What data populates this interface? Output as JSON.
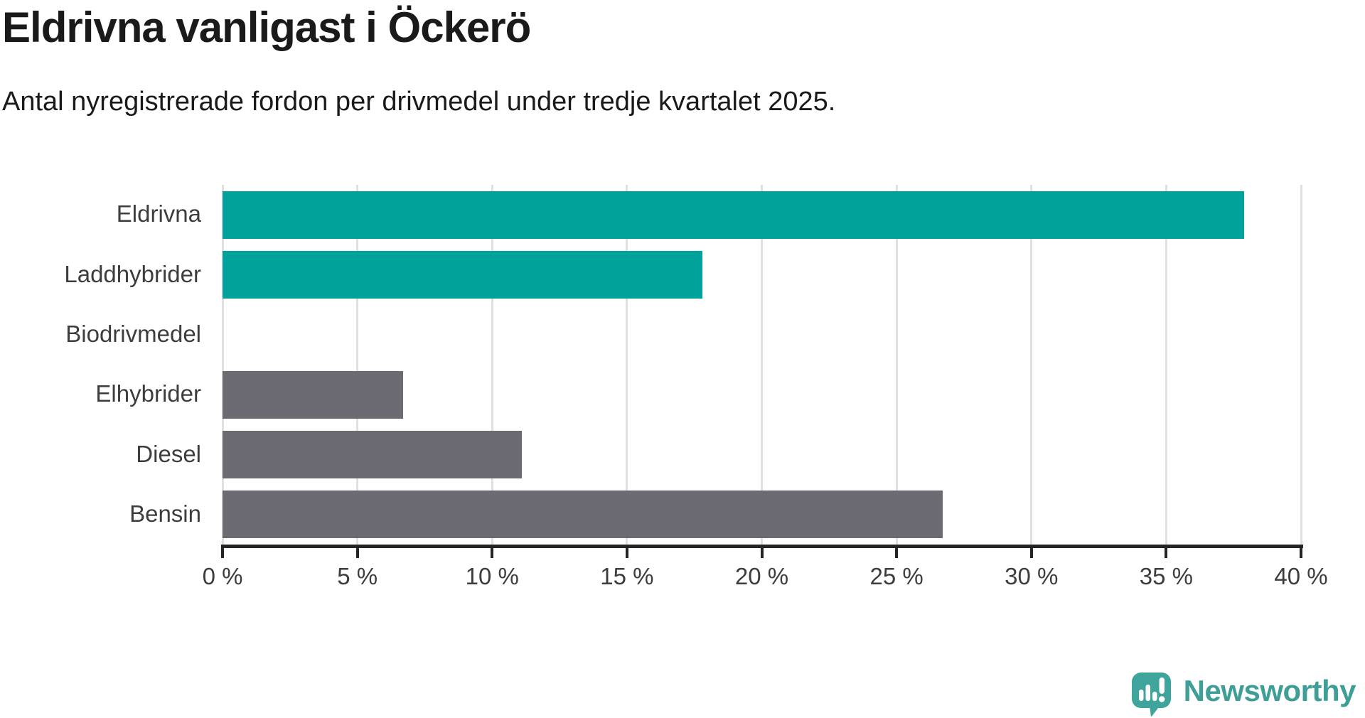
{
  "title": "Eldrivna vanligast i Öckerö",
  "subtitle": "Antal nyregistrerade fordon per drivmedel under tredje kvartalet 2025.",
  "colors": {
    "accent_teal": "#00a29b",
    "neutral_gray": "#6c6a72",
    "gridline": "#e0e0e0",
    "axis": "#252525",
    "heading_text": "#1a1a1a",
    "label_text": "#3d3d3d",
    "logo_teal": "#3f9f97"
  },
  "chart_data": {
    "type": "bar",
    "orientation": "horizontal",
    "title": "Eldrivna vanligast i Öckerö",
    "subtitle": "Antal nyregistrerade fordon per drivmedel under tredje kvartalet 2025.",
    "categories": [
      "Eldrivna",
      "Laddhybrider",
      "Biodrivmedel",
      "Elhybrider",
      "Diesel",
      "Bensin"
    ],
    "values": [
      37.9,
      17.8,
      0,
      6.7,
      11.1,
      26.7
    ],
    "bar_colors": [
      "#00a29b",
      "#00a29b",
      "#6c6a72",
      "#6c6a72",
      "#6c6a72",
      "#6c6a72"
    ],
    "xlabel": "",
    "ylabel": "",
    "xlim": [
      0,
      40
    ],
    "xticks": [
      0,
      5,
      10,
      15,
      20,
      25,
      30,
      35,
      40
    ],
    "tick_suffix": " %",
    "grid": true,
    "legend": false
  },
  "footer": {
    "brand": "Newsworthy"
  }
}
